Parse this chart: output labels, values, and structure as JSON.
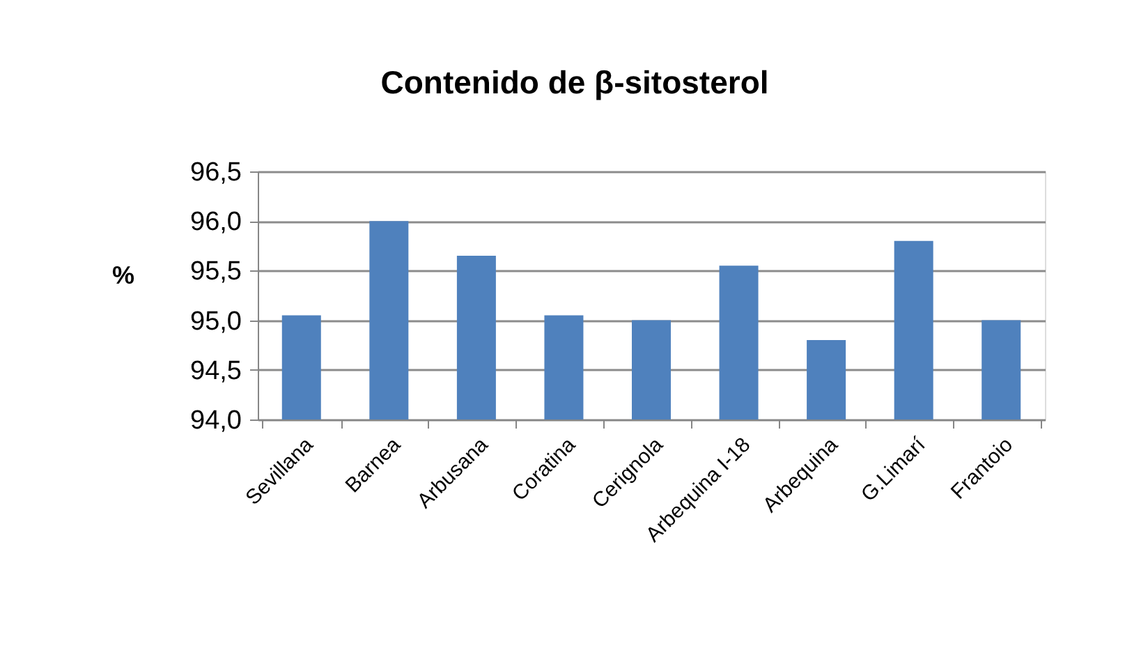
{
  "chart_data": {
    "type": "bar",
    "title": "Contenido de β-sitosterol",
    "ylabel": "%",
    "categories": [
      "Sevillana",
      "Barnea",
      "Arbusana",
      "Coratina",
      "Cerignola",
      "Arbequina I-18",
      "Arbequina",
      "G.Limarí",
      "Frantoio"
    ],
    "values": [
      95.05,
      96.0,
      95.65,
      95.05,
      95.0,
      95.55,
      94.8,
      95.8,
      95.0
    ],
    "color": "#4f81bd",
    "ylim": [
      94.0,
      96.5
    ],
    "yticks": [
      {
        "value": 94.0,
        "label": "94,0"
      },
      {
        "value": 94.5,
        "label": "94,5"
      },
      {
        "value": 95.0,
        "label": "95,0"
      },
      {
        "value": 95.5,
        "label": "95,5"
      },
      {
        "value": 96.0,
        "label": "96,0"
      },
      {
        "value": 96.5,
        "label": "96,5"
      }
    ],
    "grid": "y"
  }
}
